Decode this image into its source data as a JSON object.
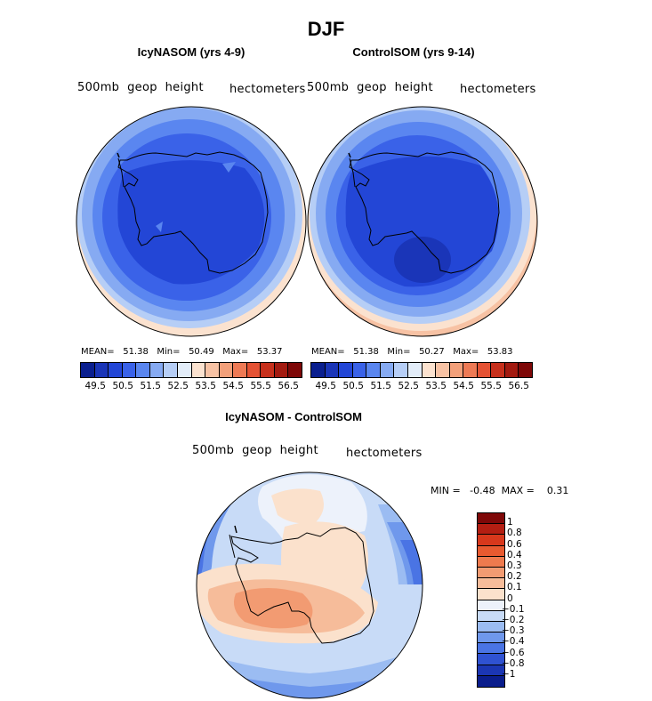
{
  "title": "DJF",
  "panel_left": {
    "subtitle": "IcyNASOM (yrs 4-9)",
    "left_label": "500mb  geop  height",
    "right_label": "hectometers",
    "mean_label": "MEAN=",
    "mean_value": "51.38",
    "min_label": "Min=",
    "min_value": "50.49",
    "max_label": "Max=",
    "max_value": "53.37"
  },
  "panel_right": {
    "subtitle": "ControlSOM (yrs 9-14)",
    "left_label": "500mb  geop  height",
    "right_label": "hectometers",
    "mean_label": "MEAN=",
    "mean_value": "51.38",
    "min_label": "Min=",
    "min_value": "50.27",
    "max_label": "Max=",
    "max_value": "53.83"
  },
  "panel_diff": {
    "subtitle": "IcyNASOM - ControlSOM",
    "left_label": "500mb  geop  height",
    "right_label": "hectometers",
    "minmax_text": "MIN =   -0.48  MAX =    0.31"
  },
  "colorbar_horizontal": {
    "colors": [
      "#0a1f8f",
      "#1a35b8",
      "#2346d6",
      "#3a62e8",
      "#5a86f0",
      "#86aaf2",
      "#b6cef6",
      "#e3edf9",
      "#fbe2cf",
      "#f7c2a4",
      "#f3a07a",
      "#ee7a55",
      "#e45234",
      "#c7301c",
      "#a31a10",
      "#7e0808"
    ],
    "labels": [
      "49.5",
      "50.5",
      "51.5",
      "52.5",
      "53.5",
      "54.5",
      "55.5",
      "56.5"
    ]
  },
  "colorbar_vertical": {
    "colors": [
      "#7e0808",
      "#b41e12",
      "#d8381c",
      "#e85a30",
      "#ee7a4e",
      "#f29b72",
      "#f6bc9a",
      "#fbe1cc",
      "#edf2fb",
      "#c8dbf7",
      "#9bbcf2",
      "#6f98ec",
      "#4a74e4",
      "#2f52d2",
      "#1b36b4",
      "#0a1d8c"
    ],
    "labels": [
      "1",
      "0.8",
      "0.6",
      "0.4",
      "0.3",
      "0.2",
      "0.1",
      "0",
      "−0.1",
      "−0.2",
      "−0.3",
      "−0.4",
      "−0.6",
      "−0.8",
      "−1"
    ]
  }
}
